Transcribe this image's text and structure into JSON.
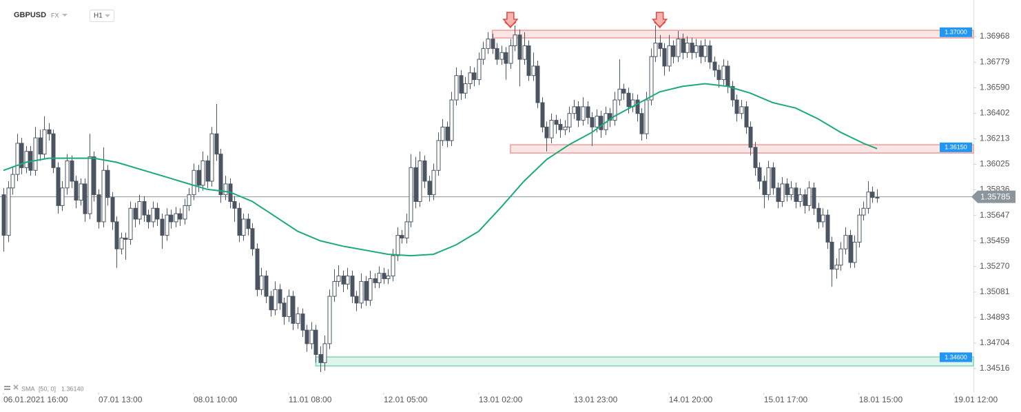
{
  "chart_data": {
    "type": "candlestick",
    "symbol": "GBPUSD",
    "market": "FX",
    "timeframe": "H1",
    "up_color": "#ffffff",
    "down_color": "#4a5561",
    "grid": false,
    "xlim": [
      -0.76,
      214.3
    ],
    "xticks": [
      {
        "value": 0,
        "label": "06.01.2021 16:00"
      },
      {
        "value": 21,
        "label": "07.01 13:00"
      },
      {
        "value": 42,
        "label": "08.01 10:00"
      },
      {
        "value": 63,
        "label": "11.01 08:00"
      },
      {
        "value": 84,
        "label": "12.01 05:00"
      },
      {
        "value": 105,
        "label": "13.01 02:00"
      },
      {
        "value": 126,
        "label": "13.01 23:00"
      },
      {
        "value": 147,
        "label": "14.01 20:00"
      },
      {
        "value": 168,
        "label": "15.01 17:00"
      },
      {
        "value": 189,
        "label": "18.01 15:00"
      },
      {
        "value": 210,
        "label": "19.01 12:00"
      }
    ],
    "ylim": [
      1.34338,
      1.37238
    ],
    "yticks": [
      1.36968,
      1.36779,
      {
        "value": 1.3659,
        "label": "1.36590"
      },
      1.36402,
      1.36213,
      1.36025,
      1.35836,
      1.35647,
      1.35459,
      {
        "value": 1.3527,
        "label": "1.35270"
      },
      1.35081,
      1.34893,
      1.34704,
      1.34516
    ],
    "ohlc": [
      [
        1.358,
        1.3585,
        1.3538,
        1.355
      ],
      [
        1.355,
        1.359,
        1.3545,
        1.3585
      ],
      [
        1.3585,
        1.36,
        1.358,
        1.3595
      ],
      [
        1.3595,
        1.3625,
        1.359,
        1.3618
      ],
      [
        1.3618,
        1.3622,
        1.3595,
        1.36
      ],
      [
        1.36,
        1.3616,
        1.3596,
        1.3612
      ],
      [
        1.3612,
        1.3616,
        1.3594,
        1.3598
      ],
      [
        1.3598,
        1.363,
        1.3594,
        1.3622
      ],
      [
        1.3622,
        1.3628,
        1.3605,
        1.361
      ],
      [
        1.361,
        1.3638,
        1.3606,
        1.3628
      ],
      [
        1.3628,
        1.3633,
        1.362,
        1.3625
      ],
      [
        1.3625,
        1.3628,
        1.3596,
        1.36
      ],
      [
        1.36,
        1.3604,
        1.3566,
        1.3572
      ],
      [
        1.3572,
        1.359,
        1.3568,
        1.3585
      ],
      [
        1.3585,
        1.361,
        1.358,
        1.3605
      ],
      [
        1.3605,
        1.3609,
        1.3585,
        1.359
      ],
      [
        1.359,
        1.3594,
        1.357,
        1.3576
      ],
      [
        1.3576,
        1.3592,
        1.3572,
        1.3588
      ],
      [
        1.3588,
        1.3592,
        1.356,
        1.3566
      ],
      [
        1.3566,
        1.3625,
        1.3562,
        1.3608
      ],
      [
        1.3608,
        1.3612,
        1.3575,
        1.358
      ],
      [
        1.358,
        1.3584,
        1.3555,
        1.356
      ],
      [
        1.356,
        1.3615,
        1.3556,
        1.3598
      ],
      [
        1.3598,
        1.3602,
        1.3572,
        1.3578
      ],
      [
        1.3578,
        1.3582,
        1.3554,
        1.356
      ],
      [
        1.356,
        1.3564,
        1.3526,
        1.354
      ],
      [
        1.354,
        1.3552,
        1.3536,
        1.3548
      ],
      [
        1.3548,
        1.3552,
        1.3532,
        1.3547
      ],
      [
        1.3547,
        1.3575,
        1.3543,
        1.357
      ],
      [
        1.357,
        1.3574,
        1.3556,
        1.3562
      ],
      [
        1.3562,
        1.358,
        1.3558,
        1.3575
      ],
      [
        1.3575,
        1.3579,
        1.356,
        1.3565
      ],
      [
        1.3565,
        1.3569,
        1.3555,
        1.356
      ],
      [
        1.356,
        1.3575,
        1.3556,
        1.357
      ],
      [
        1.357,
        1.3574,
        1.3557,
        1.3562
      ],
      [
        1.3562,
        1.3566,
        1.354,
        1.355
      ],
      [
        1.355,
        1.357,
        1.3546,
        1.3565
      ],
      [
        1.3565,
        1.3569,
        1.3555,
        1.356
      ],
      [
        1.356,
        1.3571,
        1.3556,
        1.3566
      ],
      [
        1.3566,
        1.357,
        1.3557,
        1.3562
      ],
      [
        1.3562,
        1.3577,
        1.3558,
        1.3572
      ],
      [
        1.3572,
        1.3585,
        1.3568,
        1.358
      ],
      [
        1.358,
        1.3603,
        1.3576,
        1.3598
      ],
      [
        1.3598,
        1.3602,
        1.3582,
        1.3587
      ],
      [
        1.3587,
        1.3612,
        1.3583,
        1.3605
      ],
      [
        1.3605,
        1.3609,
        1.3585,
        1.359
      ],
      [
        1.359,
        1.363,
        1.3586,
        1.3625
      ],
      [
        1.3625,
        1.3647,
        1.3605,
        1.361
      ],
      [
        1.361,
        1.3614,
        1.3574,
        1.358
      ],
      [
        1.358,
        1.3594,
        1.3576,
        1.3588
      ],
      [
        1.3588,
        1.3592,
        1.357,
        1.3575
      ],
      [
        1.3575,
        1.3579,
        1.356,
        1.357
      ],
      [
        1.357,
        1.3574,
        1.3545,
        1.355
      ],
      [
        1.355,
        1.3566,
        1.3546,
        1.3562
      ],
      [
        1.3562,
        1.3566,
        1.355,
        1.3555
      ],
      [
        1.3555,
        1.3559,
        1.3535,
        1.354
      ],
      [
        1.354,
        1.3544,
        1.3505,
        1.351
      ],
      [
        1.351,
        1.3526,
        1.3506,
        1.352
      ],
      [
        1.352,
        1.3524,
        1.35,
        1.3505
      ],
      [
        1.3505,
        1.3509,
        1.349,
        1.3495
      ],
      [
        1.3495,
        1.3516,
        1.3491,
        1.351
      ],
      [
        1.351,
        1.3514,
        1.3495,
        1.35
      ],
      [
        1.35,
        1.3504,
        1.3484,
        1.349
      ],
      [
        1.349,
        1.351,
        1.3486,
        1.3505
      ],
      [
        1.3505,
        1.3509,
        1.348,
        1.3485
      ],
      [
        1.3485,
        1.3497,
        1.3481,
        1.3492
      ],
      [
        1.3492,
        1.3496,
        1.3475,
        1.348
      ],
      [
        1.348,
        1.3484,
        1.3464,
        1.347
      ],
      [
        1.347,
        1.3486,
        1.3466,
        1.348
      ],
      [
        1.348,
        1.3484,
        1.3456,
        1.3462
      ],
      [
        1.3462,
        1.3468,
        1.3449,
        1.3456
      ],
      [
        1.3456,
        1.3476,
        1.345,
        1.347
      ],
      [
        1.347,
        1.351,
        1.3466,
        1.3505
      ],
      [
        1.3505,
        1.3525,
        1.3501,
        1.3516
      ],
      [
        1.3516,
        1.3528,
        1.3512,
        1.352
      ],
      [
        1.352,
        1.3524,
        1.3508,
        1.3514
      ],
      [
        1.3514,
        1.3526,
        1.351,
        1.352
      ],
      [
        1.352,
        1.3524,
        1.35,
        1.3505
      ],
      [
        1.3505,
        1.3509,
        1.3494,
        1.35
      ],
      [
        1.35,
        1.3522,
        1.3496,
        1.3516
      ],
      [
        1.3516,
        1.352,
        1.3498,
        1.3502
      ],
      [
        1.3502,
        1.3524,
        1.3498,
        1.3518
      ],
      [
        1.3518,
        1.3522,
        1.3511,
        1.3515
      ],
      [
        1.3515,
        1.3527,
        1.3511,
        1.3522
      ],
      [
        1.3522,
        1.3526,
        1.3514,
        1.3518
      ],
      [
        1.3518,
        1.3525,
        1.3514,
        1.352
      ],
      [
        1.352,
        1.354,
        1.3516,
        1.3535
      ],
      [
        1.3535,
        1.3556,
        1.3531,
        1.355
      ],
      [
        1.355,
        1.3554,
        1.3544,
        1.3548
      ],
      [
        1.3548,
        1.3566,
        1.3544,
        1.356
      ],
      [
        1.356,
        1.361,
        1.3556,
        1.36
      ],
      [
        1.36,
        1.3608,
        1.357,
        1.3575
      ],
      [
        1.3575,
        1.3612,
        1.3571,
        1.3605
      ],
      [
        1.3605,
        1.3609,
        1.3585,
        1.359
      ],
      [
        1.359,
        1.3594,
        1.3575,
        1.358
      ],
      [
        1.358,
        1.3603,
        1.3576,
        1.3598
      ],
      [
        1.3598,
        1.3626,
        1.3594,
        1.362
      ],
      [
        1.362,
        1.3636,
        1.3616,
        1.363
      ],
      [
        1.363,
        1.3634,
        1.3615,
        1.362
      ],
      [
        1.362,
        1.3656,
        1.3616,
        1.365
      ],
      [
        1.365,
        1.3674,
        1.3646,
        1.3668
      ],
      [
        1.3668,
        1.3672,
        1.365,
        1.3655
      ],
      [
        1.3655,
        1.3667,
        1.3651,
        1.3662
      ],
      [
        1.3662,
        1.3675,
        1.3658,
        1.367
      ],
      [
        1.367,
        1.3674,
        1.366,
        1.3665
      ],
      [
        1.3665,
        1.3685,
        1.3661,
        1.368
      ],
      [
        1.368,
        1.3693,
        1.3676,
        1.3688
      ],
      [
        1.3688,
        1.37,
        1.3684,
        1.3695
      ],
      [
        1.3695,
        1.3699,
        1.3684,
        1.3688
      ],
      [
        1.3688,
        1.3692,
        1.3676,
        1.368
      ],
      [
        1.368,
        1.369,
        1.3676,
        1.3685
      ],
      [
        1.3685,
        1.3689,
        1.3665,
        1.3677
      ],
      [
        1.3677,
        1.3695,
        1.3673,
        1.369
      ],
      [
        1.369,
        1.3705,
        1.3686,
        1.3698
      ],
      [
        1.3698,
        1.3702,
        1.366,
        1.368
      ],
      [
        1.368,
        1.37,
        1.3676,
        1.369
      ],
      [
        1.369,
        1.3694,
        1.3664,
        1.3668
      ],
      [
        1.3668,
        1.3685,
        1.3664,
        1.3675
      ],
      [
        1.3675,
        1.3679,
        1.3644,
        1.3648
      ],
      [
        1.3648,
        1.3652,
        1.3626,
        1.363
      ],
      [
        1.363,
        1.3634,
        1.3612,
        1.3622
      ],
      [
        1.3622,
        1.364,
        1.3618,
        1.3635
      ],
      [
        1.3635,
        1.3639,
        1.3625,
        1.3632
      ],
      [
        1.3632,
        1.3636,
        1.3622,
        1.3628
      ],
      [
        1.3628,
        1.3635,
        1.3624,
        1.363
      ],
      [
        1.363,
        1.3645,
        1.3626,
        1.364
      ],
      [
        1.364,
        1.365,
        1.3636,
        1.3645
      ],
      [
        1.3645,
        1.3649,
        1.363,
        1.3635
      ],
      [
        1.3635,
        1.3652,
        1.3631,
        1.3645
      ],
      [
        1.3645,
        1.3649,
        1.3632,
        1.3637
      ],
      [
        1.3637,
        1.3641,
        1.3616,
        1.363
      ],
      [
        1.363,
        1.3643,
        1.3626,
        1.3638
      ],
      [
        1.3638,
        1.3642,
        1.3622,
        1.3628
      ],
      [
        1.3628,
        1.3645,
        1.3624,
        1.364
      ],
      [
        1.364,
        1.3644,
        1.363,
        1.3635
      ],
      [
        1.3635,
        1.3656,
        1.3631,
        1.365
      ],
      [
        1.365,
        1.368,
        1.3646,
        1.3658
      ],
      [
        1.3658,
        1.3662,
        1.365,
        1.3655
      ],
      [
        1.3655,
        1.3659,
        1.364,
        1.3645
      ],
      [
        1.3645,
        1.3655,
        1.3641,
        1.365
      ],
      [
        1.365,
        1.3654,
        1.3634,
        1.364
      ],
      [
        1.364,
        1.3644,
        1.362,
        1.3625
      ],
      [
        1.3625,
        1.3656,
        1.3621,
        1.365
      ],
      [
        1.365,
        1.3688,
        1.3646,
        1.3682
      ],
      [
        1.3682,
        1.3705,
        1.3678,
        1.3692
      ],
      [
        1.3692,
        1.3698,
        1.3682,
        1.3688
      ],
      [
        1.3688,
        1.3692,
        1.3668,
        1.3675
      ],
      [
        1.3675,
        1.3698,
        1.3671,
        1.369
      ],
      [
        1.369,
        1.3694,
        1.3677,
        1.3682
      ],
      [
        1.3682,
        1.3701,
        1.3678,
        1.3695
      ],
      [
        1.3695,
        1.3699,
        1.368,
        1.3685
      ],
      [
        1.3685,
        1.3697,
        1.3681,
        1.3692
      ],
      [
        1.3692,
        1.3696,
        1.368,
        1.3685
      ],
      [
        1.3685,
        1.3695,
        1.3681,
        1.369
      ],
      [
        1.369,
        1.3694,
        1.3677,
        1.3682
      ],
      [
        1.3682,
        1.3695,
        1.3678,
        1.369
      ],
      [
        1.369,
        1.3694,
        1.3673,
        1.3678
      ],
      [
        1.3678,
        1.3682,
        1.3667,
        1.3672
      ],
      [
        1.3672,
        1.3676,
        1.3659,
        1.3665
      ],
      [
        1.3665,
        1.368,
        1.3661,
        1.3675
      ],
      [
        1.3675,
        1.3679,
        1.3655,
        1.366
      ],
      [
        1.366,
        1.3664,
        1.3645,
        1.365
      ],
      [
        1.365,
        1.3654,
        1.3634,
        1.364
      ],
      [
        1.364,
        1.365,
        1.3636,
        1.3645
      ],
      [
        1.3645,
        1.3649,
        1.3625,
        1.363
      ],
      [
        1.363,
        1.3634,
        1.3609,
        1.3615
      ],
      [
        1.3615,
        1.3619,
        1.3594,
        1.36
      ],
      [
        1.36,
        1.3604,
        1.3584,
        1.359
      ],
      [
        1.359,
        1.3594,
        1.357,
        1.358
      ],
      [
        1.358,
        1.3605,
        1.3576,
        1.36
      ],
      [
        1.36,
        1.3604,
        1.358,
        1.3585
      ],
      [
        1.3585,
        1.3589,
        1.357,
        1.3575
      ],
      [
        1.3575,
        1.3593,
        1.3571,
        1.3588
      ],
      [
        1.3588,
        1.3592,
        1.3575,
        1.358
      ],
      [
        1.358,
        1.359,
        1.3576,
        1.3585
      ],
      [
        1.3585,
        1.3589,
        1.357,
        1.3575
      ],
      [
        1.3575,
        1.3585,
        1.3571,
        1.358
      ],
      [
        1.358,
        1.3584,
        1.3566,
        1.3572
      ],
      [
        1.3572,
        1.359,
        1.3568,
        1.3585
      ],
      [
        1.3585,
        1.3589,
        1.3565,
        1.357
      ],
      [
        1.357,
        1.3574,
        1.3555,
        1.356
      ],
      [
        1.356,
        1.357,
        1.3556,
        1.3565
      ],
      [
        1.3565,
        1.3569,
        1.354,
        1.3545
      ],
      [
        1.3545,
        1.3549,
        1.3512,
        1.3525
      ],
      [
        1.3525,
        1.3533,
        1.3518,
        1.3528
      ],
      [
        1.3528,
        1.3545,
        1.3524,
        1.354
      ],
      [
        1.354,
        1.3556,
        1.3536,
        1.355
      ],
      [
        1.355,
        1.3554,
        1.3526,
        1.353
      ],
      [
        1.353,
        1.355,
        1.3526,
        1.3545
      ],
      [
        1.3545,
        1.357,
        1.3541,
        1.3565
      ],
      [
        1.3565,
        1.3575,
        1.3561,
        1.357
      ],
      [
        1.357,
        1.359,
        1.3566,
        1.3582
      ],
      [
        1.3582,
        1.3586,
        1.3574,
        1.3578
      ],
      [
        1.3578,
        1.3584,
        1.3574,
        1.3578
      ]
    ],
    "sma": {
      "name": "SMA",
      "params": "[50, 0]",
      "value_label": "1.36140",
      "color": "#1aaa78",
      "x": [
        0,
        5,
        10,
        15,
        20,
        25,
        30,
        35,
        40,
        45,
        50,
        55,
        60,
        65,
        70,
        75,
        80,
        85,
        90,
        95,
        100,
        105,
        110,
        115,
        120,
        125,
        130,
        135,
        140,
        145,
        150,
        155,
        160,
        165,
        170,
        175,
        180,
        185,
        190,
        193
      ],
      "values": [
        1.3598,
        1.3604,
        1.3607,
        1.3607,
        1.3607,
        1.3604,
        1.3599,
        1.3594,
        1.3589,
        1.3584,
        1.3582,
        1.3575,
        1.3564,
        1.3553,
        1.3546,
        1.3542,
        1.3539,
        1.3536,
        1.3535,
        1.3536,
        1.3543,
        1.3553,
        1.3571,
        1.359,
        1.3606,
        1.3617,
        1.3626,
        1.3638,
        1.3647,
        1.3656,
        1.366,
        1.3662,
        1.366,
        1.3655,
        1.3648,
        1.3644,
        1.3636,
        1.3626,
        1.3618,
        1.3614
      ]
    },
    "levels": [
      {
        "value": 1.37,
        "label": "1.37000",
        "from": 108,
        "top": 1.37014,
        "bottom": 1.36958,
        "color": "#f19a9a"
      },
      {
        "value": 1.3615,
        "label": "1.36150",
        "from": 112,
        "top": 1.36169,
        "bottom": 1.36108,
        "color": "#f19a9a"
      },
      {
        "value": 1.346,
        "label": "1.34600",
        "from": 69,
        "top": 1.34602,
        "bottom": 1.34536,
        "color": "#7fd6b4"
      }
    ],
    "level_label_color": "#2196f3",
    "markers": {
      "x": [
        112,
        145
      ],
      "color": "#e5463f"
    },
    "last_price": 1.35785
  }
}
